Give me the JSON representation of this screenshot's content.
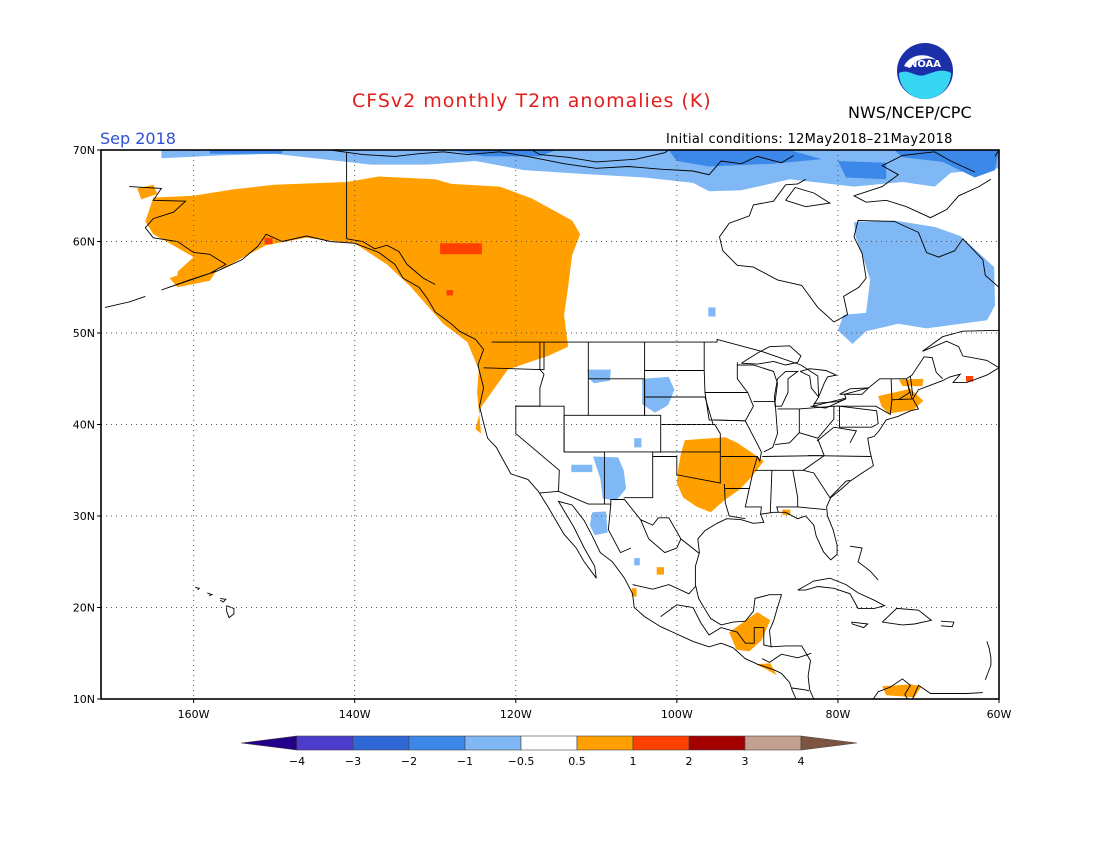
{
  "header": {
    "title": "CFSv2 monthly T2m anomalies (K)",
    "organization": "NWS/NCEP/CPC",
    "logo_text": "NOAA",
    "valid_month": "Sep 2018",
    "initial_conditions": "Initial conditions: 12May2018–21May2018"
  },
  "map": {
    "projection": "lat-lon",
    "lon_range": [
      -171.5,
      -60
    ],
    "lat_range": [
      10,
      70
    ],
    "lat_ticks": [
      {
        "value": 70,
        "label": "70N"
      },
      {
        "value": 60,
        "label": "60N"
      },
      {
        "value": 50,
        "label": "50N"
      },
      {
        "value": 40,
        "label": "40N"
      },
      {
        "value": 30,
        "label": "30N"
      },
      {
        "value": 20,
        "label": "20N"
      },
      {
        "value": 10,
        "label": "10N"
      }
    ],
    "lon_ticks": [
      {
        "value": -160,
        "label": "160W"
      },
      {
        "value": -140,
        "label": "140W"
      },
      {
        "value": -120,
        "label": "120W"
      },
      {
        "value": -100,
        "label": "100W"
      },
      {
        "value": -80,
        "label": "80W"
      },
      {
        "value": -60,
        "label": "60W"
      }
    ],
    "anomaly_regions": [
      {
        "name": "alaska-yukon-bc-warm",
        "category": "0.5 to 1",
        "color": "#ffa000",
        "polygon": [
          [
            -165,
            64.8
          ],
          [
            -160,
            65
          ],
          [
            -155,
            65.7
          ],
          [
            -150,
            66.2
          ],
          [
            -141,
            66.5
          ],
          [
            -137,
            67.1
          ],
          [
            -130,
            66.8
          ],
          [
            -128,
            66.3
          ],
          [
            -122,
            66
          ],
          [
            -118,
            64.7
          ],
          [
            -113,
            62.3
          ],
          [
            -112,
            60.8
          ],
          [
            -113,
            58.5
          ],
          [
            -113.5,
            55
          ],
          [
            -114,
            52
          ],
          [
            -113.5,
            48.5
          ],
          [
            -116,
            47.5
          ],
          [
            -121,
            46
          ],
          [
            -124.3,
            41.9
          ],
          [
            -125,
            39.5
          ],
          [
            -124.3,
            39
          ],
          [
            -124.8,
            43.5
          ],
          [
            -124.6,
            46
          ],
          [
            -126,
            49
          ],
          [
            -129,
            51
          ],
          [
            -131,
            53
          ],
          [
            -133,
            55
          ],
          [
            -136,
            57.5
          ],
          [
            -140,
            59.8
          ],
          [
            -146,
            60.4
          ],
          [
            -151,
            59.6
          ],
          [
            -154,
            58.2
          ],
          [
            -156,
            57.2
          ],
          [
            -159,
            56.5
          ],
          [
            -162,
            55.5
          ],
          [
            -162,
            56.7
          ],
          [
            -160,
            58.3
          ],
          [
            -163,
            59.8
          ],
          [
            -165,
            60.8
          ],
          [
            -166,
            62.2
          ],
          [
            -165.5,
            63.5
          ]
        ]
      },
      {
        "name": "alaska-peninsula-warm",
        "category": "0.5 to 1",
        "color": "#ffa000",
        "polygon": [
          [
            -163,
            56
          ],
          [
            -159,
            57.2
          ],
          [
            -157,
            57
          ],
          [
            -158,
            55.7
          ],
          [
            -162,
            55
          ]
        ]
      },
      {
        "name": "western-alaska-coast-warm",
        "category": "0.5 to 1",
        "color": "#ffa000",
        "polygon": [
          [
            -167,
            65.8
          ],
          [
            -165,
            66.2
          ],
          [
            -164.5,
            65.2
          ],
          [
            -166.5,
            64.6
          ]
        ]
      },
      {
        "name": "south-central-plains-warm",
        "category": "0.5 to 1",
        "color": "#ffa000",
        "polygon": [
          [
            -99,
            38.3
          ],
          [
            -94,
            38.6
          ],
          [
            -92.5,
            38
          ],
          [
            -90.5,
            36.8
          ],
          [
            -89.2,
            36
          ],
          [
            -90.7,
            34.3
          ],
          [
            -92.2,
            32.9
          ],
          [
            -94,
            31.8
          ],
          [
            -95.8,
            30.4
          ],
          [
            -97.5,
            31
          ],
          [
            -99.2,
            32
          ],
          [
            -100,
            33.6
          ],
          [
            -99.8,
            35.4
          ],
          [
            -99.5,
            36.8
          ]
        ]
      },
      {
        "name": "maine-nova-scotia-warm",
        "category": "0.5 to 1",
        "color": "#ffa000",
        "polygon": [
          [
            -75,
            43.1
          ],
          [
            -71,
            43.9
          ],
          [
            -69.4,
            42.6
          ],
          [
            -70.6,
            41.6
          ],
          [
            -73.7,
            41.2
          ],
          [
            -74.6,
            42
          ]
        ]
      },
      {
        "name": "northeast-coast-warm-2",
        "category": "0.5 to 1",
        "color": "#ffa000",
        "polygon": [
          [
            -72.4,
            44.9
          ],
          [
            -69.4,
            45
          ],
          [
            -69.5,
            44.2
          ],
          [
            -72,
            44.2
          ]
        ]
      },
      {
        "name": "central-america-warm",
        "category": "0.5 to 1",
        "color": "#ffa000",
        "polygon": [
          [
            -93.5,
            17.3
          ],
          [
            -90,
            19.5
          ],
          [
            -88.4,
            18.6
          ],
          [
            -89.5,
            16.4
          ],
          [
            -91,
            15.2
          ],
          [
            -92.6,
            15.4
          ]
        ]
      },
      {
        "name": "el-salvador-warm",
        "category": "0.5 to 1",
        "color": "#ffa000",
        "polygon": [
          [
            -90.2,
            13.8
          ],
          [
            -88.8,
            13.2
          ],
          [
            -87.6,
            12.6
          ],
          [
            -88.4,
            13.9
          ]
        ]
      },
      {
        "name": "venezuela-coast-warm",
        "category": "0.5 to 1",
        "color": "#ffa000",
        "polygon": [
          [
            -74.5,
            11.4
          ],
          [
            -71,
            11.6
          ],
          [
            -69.6,
            11.4
          ],
          [
            -70.5,
            10.2
          ],
          [
            -74,
            10.4
          ]
        ]
      },
      {
        "name": "gulf-coast-warm",
        "category": "0.5 to 1",
        "color": "#ffa000",
        "polygon": [
          [
            -86.9,
            30.7
          ],
          [
            -85.9,
            30.7
          ],
          [
            -85.9,
            30.1
          ],
          [
            -86.9,
            30.1
          ]
        ]
      },
      {
        "name": "mexico-coast-warm",
        "category": "0.5 to 1",
        "color": "#ffa000",
        "polygon": [
          [
            -105.6,
            22.1
          ],
          [
            -105,
            22.1
          ],
          [
            -105,
            21.2
          ],
          [
            -105.6,
            21.2
          ]
        ]
      },
      {
        "name": "mexico-coast-warm-2",
        "category": "0.5 to 1",
        "color": "#ffa000",
        "polygon": [
          [
            -102.5,
            24.4
          ],
          [
            -101.6,
            24.4
          ],
          [
            -101.6,
            23.6
          ],
          [
            -102.5,
            23.6
          ]
        ]
      },
      {
        "name": "yukon-warm-core",
        "category": "1 to 2",
        "color": "#ff4000",
        "polygon": [
          [
            -129.4,
            59.8
          ],
          [
            -124.2,
            59.8
          ],
          [
            -124.2,
            58.6
          ],
          [
            -129.4,
            58.6
          ]
        ]
      },
      {
        "name": "bc-warm-core",
        "category": "1 to 2",
        "color": "#ff4000",
        "polygon": [
          [
            -128.6,
            54.7
          ],
          [
            -127.8,
            54.7
          ],
          [
            -127.8,
            54.1
          ],
          [
            -128.6,
            54.1
          ]
        ]
      },
      {
        "name": "alaska-warm-core",
        "category": "1 to 2",
        "color": "#ff4000",
        "polygon": [
          [
            -151.2,
            60.4
          ],
          [
            -150.2,
            60.4
          ],
          [
            -150.2,
            59.7
          ],
          [
            -151.2,
            59.7
          ]
        ]
      },
      {
        "name": "nova-scotia-warm-core",
        "category": "1 to 2",
        "color": "#ff4000",
        "polygon": [
          [
            -64.1,
            45.3
          ],
          [
            -63.2,
            45.3
          ],
          [
            -63.2,
            44.7
          ],
          [
            -64.1,
            44.7
          ]
        ]
      },
      {
        "name": "arctic-coast-cool",
        "category": "-1 to -0.5",
        "color": "#7fb8f5",
        "polygon": [
          [
            -164,
            70
          ],
          [
            -60,
            70
          ],
          [
            -60,
            68
          ],
          [
            -66,
            67.5
          ],
          [
            -68,
            66
          ],
          [
            -72,
            66.5
          ],
          [
            -78,
            66
          ],
          [
            -86,
            66.8
          ],
          [
            -92,
            65.6
          ],
          [
            -96,
            65.5
          ],
          [
            -98,
            66.4
          ],
          [
            -104,
            67
          ],
          [
            -112,
            67.4
          ],
          [
            -119,
            67.8
          ],
          [
            -125,
            68.8
          ],
          [
            -131,
            68.4
          ],
          [
            -138,
            68.4
          ],
          [
            -145,
            69.1
          ],
          [
            -150,
            69.6
          ],
          [
            -157,
            69.4
          ],
          [
            -164,
            69.1
          ]
        ]
      },
      {
        "name": "arctic-islands-cool",
        "category": "-2 to -1",
        "color": "#3c88e8",
        "polygon": [
          [
            -73,
            70
          ],
          [
            -60,
            70
          ],
          [
            -60.5,
            67.8
          ],
          [
            -63,
            67
          ],
          [
            -67,
            68.7
          ],
          [
            -72,
            69.2
          ]
        ]
      },
      {
        "name": "arctic-archipelago-cool-2",
        "category": "-2 to -1",
        "color": "#3c88e8",
        "polygon": [
          [
            -101,
            70
          ],
          [
            -86,
            70
          ],
          [
            -82,
            69
          ],
          [
            -88,
            68.5
          ],
          [
            -96,
            68.2
          ],
          [
            -100,
            68.8
          ]
        ]
      },
      {
        "name": "arctic-archipelago-cool-3",
        "category": "-2 to -1",
        "color": "#3c88e8",
        "polygon": [
          [
            -128,
            70
          ],
          [
            -115,
            70
          ],
          [
            -117,
            69.3
          ],
          [
            -124,
            69.3
          ]
        ]
      },
      {
        "name": "arctic-archipelago-cool-4",
        "category": "-2 to -1",
        "color": "#3c88e8",
        "polygon": [
          [
            -80,
            68.8
          ],
          [
            -74,
            68.6
          ],
          [
            -74,
            66.8
          ],
          [
            -79,
            67
          ]
        ]
      },
      {
        "name": "alaska-arctic-cool",
        "category": "-2 to -1",
        "color": "#3c88e8",
        "polygon": [
          [
            -158,
            70
          ],
          [
            -149,
            70
          ],
          [
            -149,
            69.6
          ],
          [
            -158,
            69.6
          ]
        ]
      },
      {
        "name": "quebec-labrador-cool",
        "category": "-1 to -0.5",
        "color": "#7fb8f5",
        "polygon": [
          [
            -78,
            62.1
          ],
          [
            -73,
            62.3
          ],
          [
            -68,
            61.6
          ],
          [
            -64.8,
            60.6
          ],
          [
            -60.6,
            57.2
          ],
          [
            -60.5,
            53
          ],
          [
            -61.5,
            51.4
          ],
          [
            -69,
            50.5
          ],
          [
            -72.5,
            51
          ],
          [
            -76.5,
            50.2
          ],
          [
            -78.2,
            48.8
          ],
          [
            -80,
            50.3
          ],
          [
            -79.3,
            52
          ],
          [
            -76.5,
            52.2
          ],
          [
            -76,
            55.8
          ],
          [
            -77,
            58.6
          ],
          [
            -77.8,
            60.5
          ]
        ]
      },
      {
        "name": "south-southwest-cool",
        "category": "-1 to -0.5",
        "color": "#7fb8f5",
        "polygon": [
          [
            -110.4,
            36.5
          ],
          [
            -107.3,
            36.4
          ],
          [
            -106.6,
            35
          ],
          [
            -106.3,
            33
          ],
          [
            -107.5,
            31.7
          ],
          [
            -109.2,
            31.9
          ],
          [
            -109.5,
            34.1
          ]
        ]
      },
      {
        "name": "sonora-cool",
        "category": "-1 to -0.5",
        "color": "#7fb8f5",
        "polygon": [
          [
            -110.5,
            30.4
          ],
          [
            -108.8,
            30.5
          ],
          [
            -108.6,
            28.2
          ],
          [
            -110.2,
            27.9
          ],
          [
            -110.8,
            29
          ]
        ]
      },
      {
        "name": "southwest-cool-2",
        "category": "-1 to -0.5",
        "color": "#7fb8f5",
        "polygon": [
          [
            -113.1,
            35.6
          ],
          [
            -110.5,
            35.6
          ],
          [
            -110.5,
            34.8
          ],
          [
            -113.1,
            34.8
          ]
        ]
      },
      {
        "name": "montana-cool",
        "category": "-1 to -0.5",
        "color": "#7fb8f5",
        "polygon": [
          [
            -111.1,
            46
          ],
          [
            -108.2,
            46
          ],
          [
            -108.3,
            44.8
          ],
          [
            -110.3,
            44.5
          ],
          [
            -111,
            45.1
          ]
        ]
      },
      {
        "name": "dakotas-cool",
        "category": "-1 to -0.5",
        "color": "#7fb8f5",
        "polygon": [
          [
            -104.3,
            45
          ],
          [
            -101,
            45.2
          ],
          [
            -100.3,
            43.8
          ],
          [
            -101.1,
            42.1
          ],
          [
            -102.7,
            41.3
          ],
          [
            -104.3,
            42.2
          ]
        ]
      },
      {
        "name": "lake-of-woods-cool",
        "category": "-1 to -0.5",
        "color": "#7fb8f5",
        "polygon": [
          [
            -96.1,
            52.8
          ],
          [
            -95.2,
            52.8
          ],
          [
            -95.2,
            51.8
          ],
          [
            -96.1,
            51.8
          ]
        ]
      },
      {
        "name": "baja-cool",
        "category": "-1 to -0.5",
        "color": "#7fb8f5",
        "polygon": [
          [
            -105.3,
            25.4
          ],
          [
            -104.6,
            25.4
          ],
          [
            -104.6,
            24.6
          ],
          [
            -105.3,
            24.6
          ]
        ]
      },
      {
        "name": "kansas-cool",
        "category": "-1 to -0.5",
        "color": "#7fb8f5",
        "polygon": [
          [
            -105.3,
            38.5
          ],
          [
            -104.4,
            38.5
          ],
          [
            -104.4,
            37.5
          ],
          [
            -105.3,
            37.5
          ]
        ]
      }
    ]
  },
  "colorbar": {
    "colors": [
      "#24008a",
      "#4b3ccc",
      "#2f67d6",
      "#3c88e8",
      "#7fb8f5",
      "#ffffff",
      "#ffa000",
      "#ff4000",
      "#a50000",
      "#c3a08f",
      "#7c5440"
    ],
    "labels": [
      "−4",
      "−3",
      "−2",
      "−1",
      "−0.5",
      "0.5",
      "1",
      "2",
      "3",
      "4"
    ]
  }
}
